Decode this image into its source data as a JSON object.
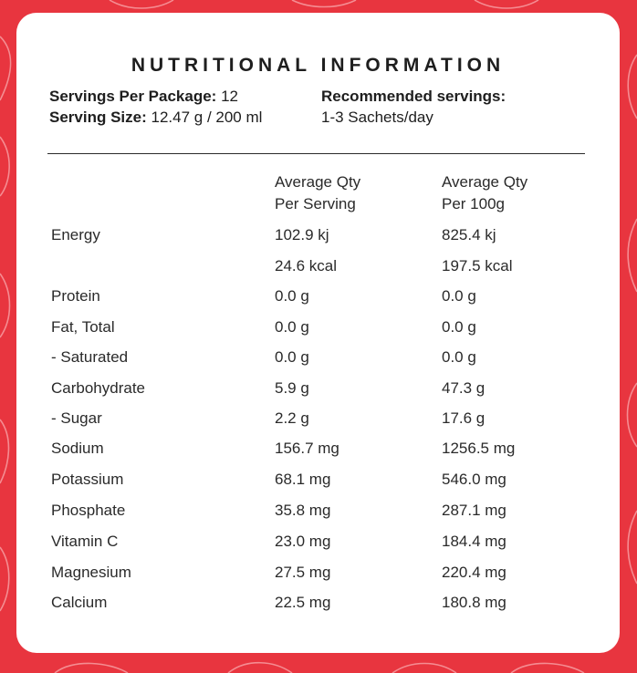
{
  "colors": {
    "background": "#e8353f",
    "card": "#ffffff",
    "text": "#1e1e1e"
  },
  "title": "NUTRITIONAL INFORMATION",
  "servings_label": "Servings Per Package:",
  "servings_value": "12",
  "serving_size_label": "Serving Size:",
  "serving_size_value": "12.47 g / 200 ml",
  "recommended_label": "Recommended servings:",
  "recommended_value": "1-3 Sachets/day",
  "columns": {
    "per_serving_line1": "Average Qty",
    "per_serving_line2": "Per Serving",
    "per_100g_line1": "Average Qty",
    "per_100g_line2": "Per 100g"
  },
  "rows": [
    {
      "name": "Energy",
      "serving": "102.9 kj",
      "per100": "825.4 kj"
    },
    {
      "name": "",
      "serving": "24.6 kcal",
      "per100": "197.5 kcal"
    },
    {
      "name": "Protein",
      "serving": "0.0 g",
      "per100": "0.0 g"
    },
    {
      "name": "Fat, Total",
      "serving": "0.0 g",
      "per100": "0.0 g"
    },
    {
      "name": "- Saturated",
      "serving": "0.0 g",
      "per100": "0.0 g"
    },
    {
      "name": "Carbohydrate",
      "serving": "5.9 g",
      "per100": "47.3 g"
    },
    {
      "name": "- Sugar",
      "serving": "2.2 g",
      "per100": "17.6 g"
    },
    {
      "name": "Sodium",
      "serving": "156.7 mg",
      "per100": "1256.5 mg"
    },
    {
      "name": "Potassium",
      "serving": "68.1 mg",
      "per100": "546.0 mg"
    },
    {
      "name": "Phosphate",
      "serving": "35.8 mg",
      "per100": "287.1 mg"
    },
    {
      "name": "Vitamin C",
      "serving": "23.0 mg",
      "per100": "184.4 mg"
    },
    {
      "name": "Magnesium",
      "serving": "27.5 mg",
      "per100": "220.4 mg"
    },
    {
      "name": "Calcium",
      "serving": "22.5 mg",
      "per100": "180.8 mg"
    }
  ]
}
